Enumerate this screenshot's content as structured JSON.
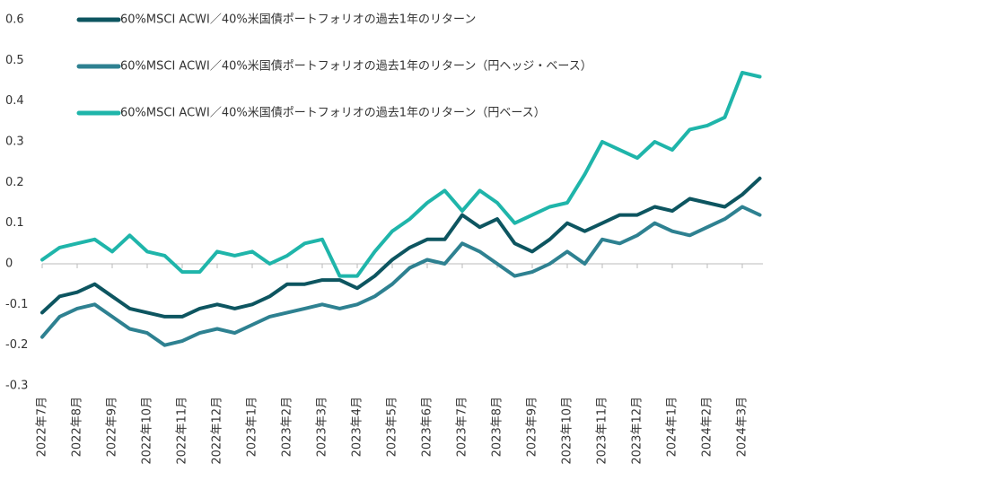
{
  "chart_data": {
    "type": "line",
    "categories": [
      "2022年7月",
      null,
      "2022年8月",
      null,
      "2022年9月",
      null,
      "2022年10月",
      null,
      "2022年11月",
      null,
      "2022年12月",
      null,
      "2023年1月",
      null,
      "2023年2月",
      null,
      "2023年3月",
      null,
      "2023年4月",
      null,
      "2023年5月",
      null,
      "2023年6月",
      null,
      "2023年7月",
      null,
      "2023年8月",
      null,
      "2023年9月",
      null,
      "2023年10月",
      null,
      "2023年11月",
      null,
      "2023年12月",
      null,
      "2024年1月",
      null,
      "2024年2月",
      null,
      "2024年3月",
      null
    ],
    "series": [
      {
        "name": "60%MSCI ACWI／40%米国債ポートフォリオの過去1年のリターン",
        "color": "#0d5560",
        "values": [
          -0.12,
          -0.08,
          -0.07,
          -0.05,
          -0.08,
          -0.11,
          -0.12,
          -0.13,
          -0.13,
          -0.11,
          -0.1,
          -0.11,
          -0.1,
          -0.08,
          -0.05,
          -0.05,
          -0.04,
          -0.04,
          -0.06,
          -0.03,
          0.01,
          0.04,
          0.06,
          0.06,
          0.12,
          0.09,
          0.11,
          0.05,
          0.03,
          0.06,
          0.1,
          0.08,
          0.1,
          0.12,
          0.12,
          0.14,
          0.13,
          0.16,
          0.15,
          0.14,
          0.17,
          0.21
        ]
      },
      {
        "name": "60%MSCI ACWI／40%米国債ポートフォリオの過去1年のリターン（円ヘッジ・ベース）",
        "color": "#2e8191",
        "values": [
          -0.18,
          -0.13,
          -0.11,
          -0.1,
          -0.13,
          -0.16,
          -0.17,
          -0.2,
          -0.19,
          -0.17,
          -0.16,
          -0.17,
          -0.15,
          -0.13,
          -0.12,
          -0.11,
          -0.1,
          -0.11,
          -0.1,
          -0.08,
          -0.05,
          -0.01,
          0.01,
          0.0,
          0.05,
          0.03,
          0.0,
          -0.03,
          -0.02,
          0.0,
          0.03,
          0.0,
          0.06,
          0.05,
          0.07,
          0.1,
          0.08,
          0.07,
          0.09,
          0.11,
          0.14,
          0.12
        ]
      },
      {
        "name": "60%MSCI ACWI／40%米国債ポートフォリオの過去1年のリターン（円ベース）",
        "color": "#1fb5aa",
        "values": [
          0.01,
          0.04,
          0.05,
          0.06,
          0.03,
          0.07,
          0.03,
          0.02,
          -0.02,
          -0.02,
          0.03,
          0.02,
          0.03,
          0.0,
          0.02,
          0.05,
          0.06,
          -0.03,
          -0.03,
          0.03,
          0.08,
          0.11,
          0.15,
          0.18,
          0.13,
          0.18,
          0.15,
          0.1,
          0.12,
          0.14,
          0.15,
          0.22,
          0.3,
          0.28,
          0.26,
          0.3,
          0.28,
          0.33,
          0.34,
          0.36,
          0.47,
          0.46
        ]
      }
    ],
    "ylim": [
      -0.3,
      0.6
    ],
    "yticks": [
      0.6,
      0.5,
      0.4,
      0.3,
      0.2,
      0.1,
      0,
      -0.1,
      -0.2,
      -0.3
    ],
    "legend": "upper-left"
  }
}
